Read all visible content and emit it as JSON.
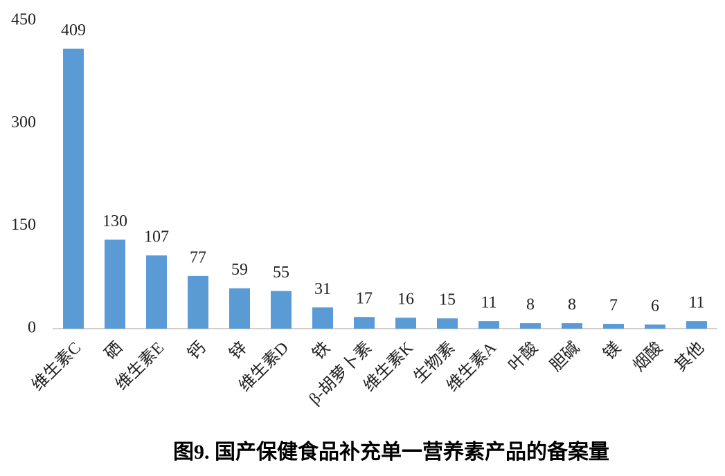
{
  "chart_data": {
    "type": "bar",
    "title": "图9. 国产保健食品补充单一营养素产品的备案量",
    "categories": [
      "维生素C",
      "硒",
      "维生素E",
      "钙",
      "锌",
      "维生素D",
      "铁",
      "β-胡萝卜素",
      "维生素K",
      "生物素",
      "维生素A",
      "叶酸",
      "胆碱",
      "镁",
      "烟酸",
      "其他"
    ],
    "values": [
      409,
      130,
      107,
      77,
      59,
      55,
      31,
      17,
      16,
      15,
      11,
      8,
      8,
      7,
      6,
      11
    ],
    "color": "#5b9bd5",
    "ylim": [
      0,
      450
    ],
    "yticks": [
      0,
      150,
      300,
      450
    ],
    "grid": false
  }
}
